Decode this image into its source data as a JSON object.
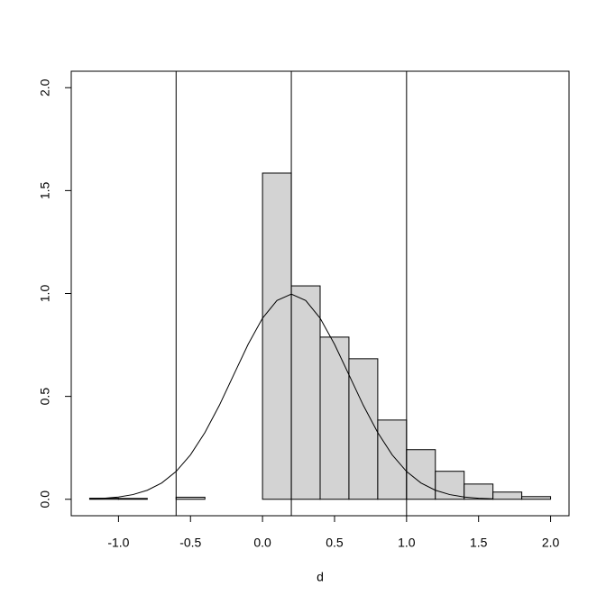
{
  "chart_data": {
    "type": "histogram",
    "xlabel": "d",
    "bins": [
      -1.2,
      -1.0,
      -0.8,
      -0.6,
      -0.4,
      -0.2,
      0.0,
      0.2,
      0.4,
      0.6,
      0.8,
      1.0,
      1.2,
      1.4,
      1.6,
      1.8,
      2.0
    ],
    "values": [
      0.005,
      0.004,
      0,
      0.01,
      0,
      0,
      1.585,
      1.037,
      0.788,
      0.683,
      0.385,
      0.241,
      0.136,
      0.074,
      0.035,
      0.013
    ],
    "color": "#d3d3d3",
    "density": {
      "x": [
        -1.2,
        -1.1,
        -1.0,
        -0.9,
        -0.8,
        -0.7,
        -0.6,
        -0.5,
        -0.4,
        -0.3,
        -0.2,
        -0.1,
        0.0,
        0.1,
        0.2,
        0.3,
        0.4,
        0.5,
        0.6,
        0.7,
        0.8,
        0.9,
        1.0,
        1.1,
        1.2,
        1.3,
        1.4,
        1.5,
        1.6
      ],
      "values": [
        0.0022,
        0.0051,
        0.0111,
        0.0227,
        0.0438,
        0.0793,
        0.135,
        0.216,
        0.324,
        0.456,
        0.605,
        0.753,
        0.88,
        0.966,
        0.997,
        0.966,
        0.88,
        0.753,
        0.605,
        0.456,
        0.324,
        0.216,
        0.135,
        0.0793,
        0.0438,
        0.0227,
        0.0111,
        0.0051,
        0.0022
      ]
    },
    "vlines": [
      -0.6,
      0.2,
      1.0
    ],
    "xlim": [
      -1.328,
      2.128
    ],
    "ylim": [
      -0.08,
      2.08
    ],
    "xticks": [
      {
        "value": -1.0,
        "label": "-1.0"
      },
      -0.5,
      {
        "value": 0.0,
        "label": "0.0"
      },
      0.5,
      {
        "value": 1.0,
        "label": "1.0"
      },
      1.5,
      {
        "value": 2.0,
        "label": "2.0"
      }
    ],
    "yticks": [
      {
        "value": 0.0,
        "label": "0.0"
      },
      0.5,
      {
        "value": 1.0,
        "label": "1.0"
      },
      1.5,
      {
        "value": 2.0,
        "label": "2.0"
      }
    ]
  }
}
